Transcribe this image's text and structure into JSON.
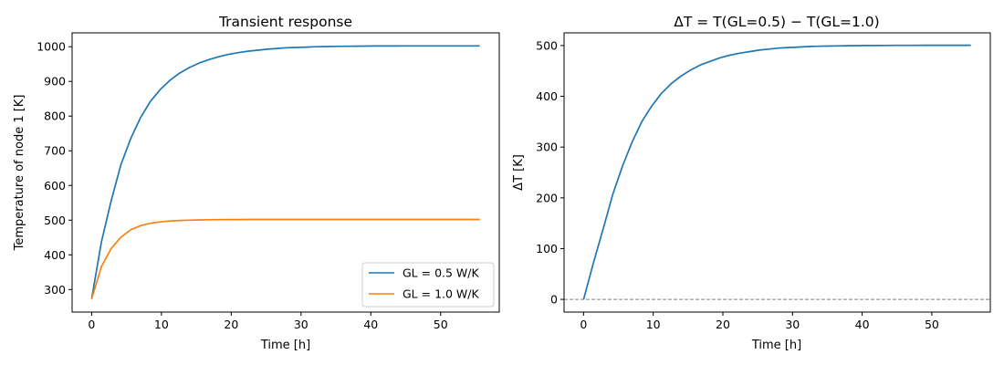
{
  "chart_data": [
    {
      "type": "line",
      "title": "Transient response",
      "xlabel": "Time [h]",
      "ylabel": "Temperature of node 1 [K]",
      "xlim": [
        -2.8,
        58.4
      ],
      "ylim": [
        235,
        1040
      ],
      "xticks": [
        0,
        10,
        20,
        30,
        40,
        50
      ],
      "yticks": [
        300,
        400,
        500,
        600,
        700,
        800,
        900,
        1000
      ],
      "legend": "bottom-right",
      "grid": false,
      "x": [
        0,
        1.4,
        2.8,
        4.2,
        5.6,
        7,
        8.4,
        9.8,
        11.2,
        12.6,
        14,
        15.4,
        16.8,
        18.2,
        19.6,
        21,
        22.4,
        23.8,
        25.2,
        26.6,
        28,
        29.4,
        30.8,
        32.2,
        33.6,
        35,
        36.4,
        37.8,
        39.2,
        40.6,
        42,
        43.4,
        44.8,
        46.2,
        47.6,
        49,
        50.4,
        51.8,
        53.2,
        54.6,
        55.6
      ],
      "series": [
        {
          "name": "GL = 0.5 W/K",
          "color": "#1f77b4",
          "values": [
            273,
            437,
            556,
            660,
            735,
            795,
            842,
            876,
            903,
            924,
            940,
            953,
            963,
            971,
            978,
            983,
            987,
            990,
            993,
            995,
            997,
            998,
            999,
            1000,
            1000.5,
            1001,
            1001.3,
            1001.6,
            1001.8,
            1002,
            1002.1,
            1002.2,
            1002.3,
            1002.4,
            1002.4,
            1002.5,
            1002.5,
            1002.5,
            1002.5,
            1002.5,
            1002.5
          ]
        },
        {
          "name": "GL = 1.0 W/K",
          "color": "#ff7f0e",
          "values": [
            273,
            366,
            418,
            451,
            472,
            484,
            491,
            495,
            497.5,
            499,
            500,
            500.8,
            501.2,
            501.5,
            501.7,
            501.8,
            501.9,
            502,
            502,
            502,
            502,
            502,
            502,
            502,
            502,
            502,
            502,
            502,
            502,
            502,
            502,
            502,
            502,
            502,
            502,
            502,
            502,
            502,
            502,
            502,
            502
          ]
        }
      ]
    },
    {
      "type": "line",
      "title": "ΔT = T(GL=0.5) − T(GL=1.0)",
      "xlabel": "Time [h]",
      "ylabel": "ΔT [K]",
      "xlim": [
        -2.8,
        58.4
      ],
      "ylim": [
        -25,
        525
      ],
      "xticks": [
        0,
        10,
        20,
        30,
        40,
        50
      ],
      "yticks": [
        0,
        100,
        200,
        300,
        400,
        500
      ],
      "grid": false,
      "reference_line": {
        "y": 0,
        "color": "#808080",
        "style": "dashed"
      },
      "x": [
        0,
        1.4,
        2.8,
        4.2,
        5.6,
        7,
        8.4,
        9.8,
        11.2,
        12.6,
        14,
        15.4,
        16.8,
        18.2,
        19.6,
        21,
        22.4,
        23.8,
        25.2,
        26.6,
        28,
        29.4,
        30.8,
        32.2,
        33.6,
        35,
        36.4,
        37.8,
        39.2,
        40.6,
        42,
        43.4,
        44.8,
        46.2,
        47.6,
        49,
        50.4,
        51.8,
        53.2,
        54.6,
        55.6
      ],
      "series": [
        {
          "color": "#1f77b4",
          "values": [
            0,
            71,
            138,
            207,
            263,
            311,
            351,
            381,
            406,
            425,
            440,
            452,
            462,
            469,
            476,
            481,
            485,
            488,
            491,
            493,
            495,
            496,
            497,
            498,
            498.5,
            499,
            499.3,
            499.6,
            499.8,
            500,
            500.1,
            500.2,
            500.3,
            500.4,
            500.4,
            500.5,
            500.5,
            500.5,
            500.5,
            500.5,
            500.5
          ]
        }
      ]
    }
  ]
}
